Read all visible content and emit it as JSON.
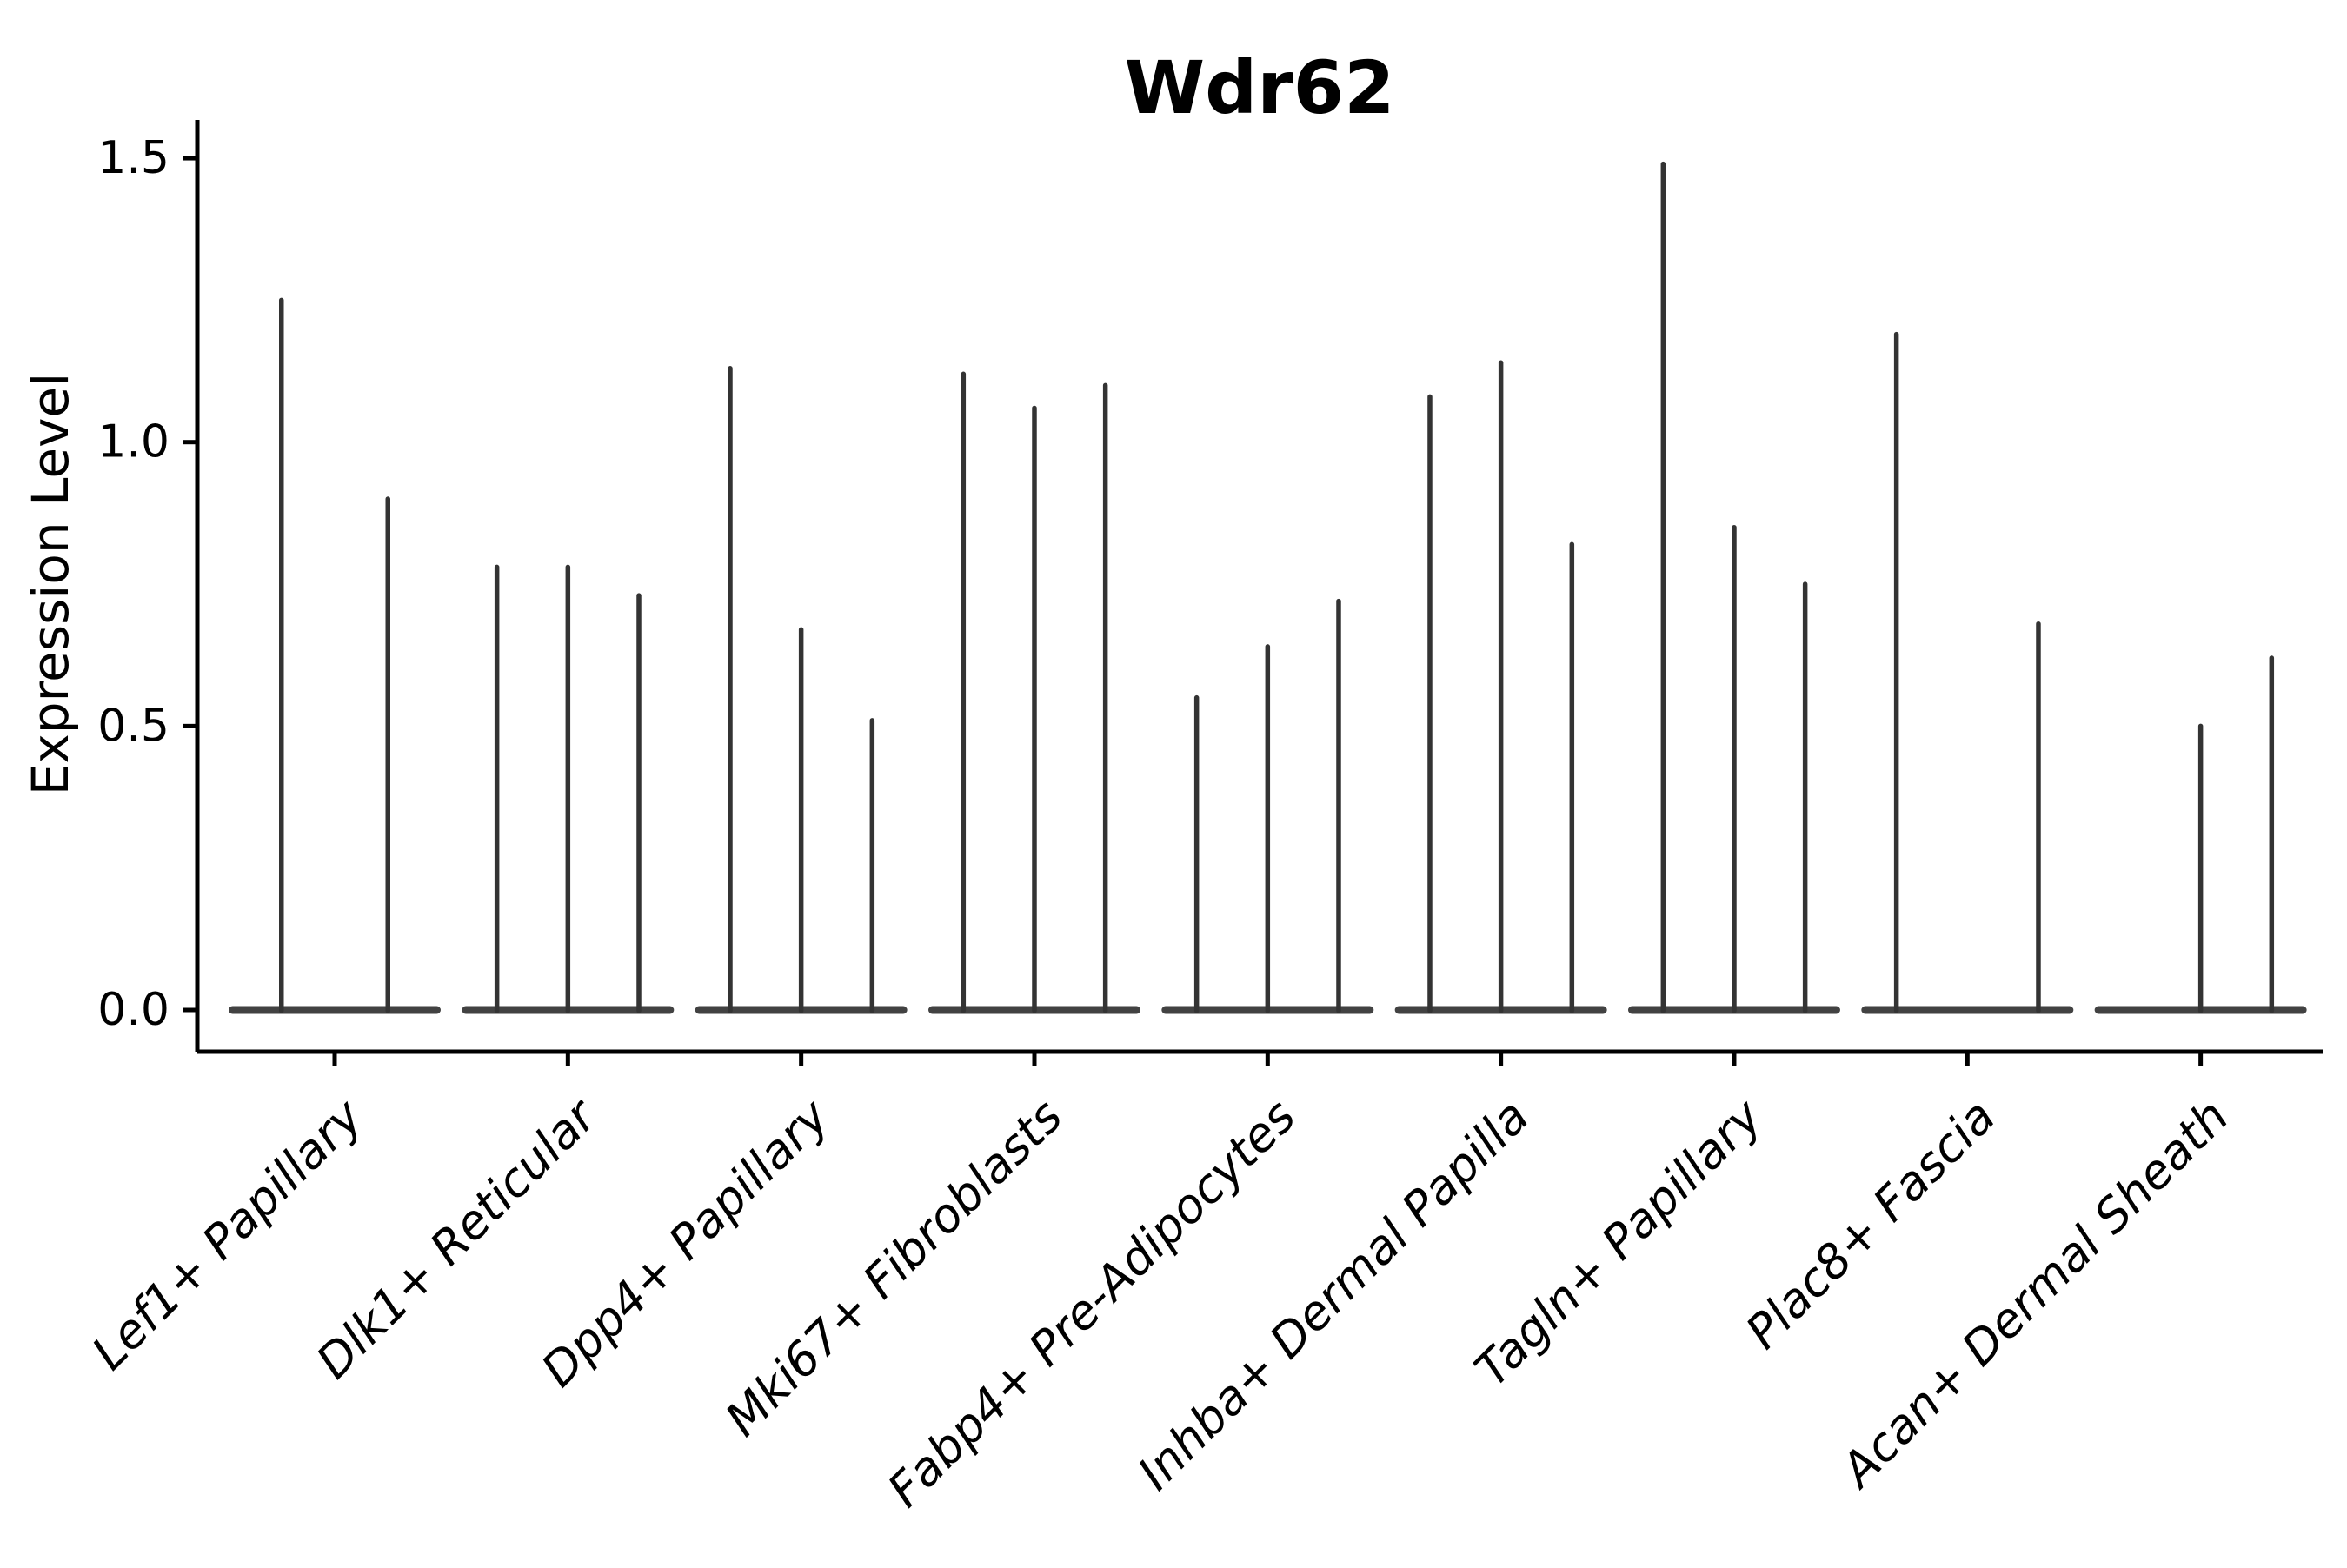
{
  "figure": {
    "title": "Wdr62",
    "ylabel": "Expression Level"
  },
  "chart_data": {
    "type": "violin",
    "title": "Wdr62",
    "xlabel": "",
    "ylabel": "Expression Level",
    "ylim": [
      -0.07,
      1.56
    ],
    "yticks": [
      {
        "value": 0.0,
        "label": "0.0"
      },
      {
        "value": 0.5,
        "label": "0.5"
      },
      {
        "value": 1.0,
        "label": "1.0"
      },
      {
        "value": 1.5,
        "label": "1.5"
      }
    ],
    "grid": false,
    "legend": "none",
    "violin_style": "flat baseline at zero with narrow vertical spike to max expression",
    "colors": {
      "violin": "#333333",
      "axis": "#000000",
      "background": "#ffffff"
    },
    "categories": [
      {
        "label": "Lef1+ Papillary",
        "violin_max_expression": [
          1.25,
          0.9
        ]
      },
      {
        "label": "Dlk1+ Reticular",
        "violin_max_expression": [
          0.78,
          0.78,
          0.73
        ]
      },
      {
        "label": "Dpp4+ Papillary",
        "violin_max_expression": [
          1.13,
          0.67,
          0.51
        ]
      },
      {
        "label": "Mki67+ Fibroblasts",
        "violin_max_expression": [
          1.12,
          1.06,
          1.1
        ]
      },
      {
        "label": "Fabp4+ Pre-Adipocytes",
        "violin_max_expression": [
          0.55,
          0.64,
          0.72
        ]
      },
      {
        "label": "Inhba+ Dermal Papilla",
        "violin_max_expression": [
          1.08,
          1.14,
          0.82
        ]
      },
      {
        "label": "Tagln+ Papillary",
        "violin_max_expression": [
          1.49,
          0.85,
          0.75
        ]
      },
      {
        "label": "Plac8+ Fascia",
        "violin_max_expression": [
          1.19,
          null,
          0.68
        ]
      },
      {
        "label": "Acan+ Dermal Sheath",
        "violin_max_expression": [
          null,
          0.5,
          0.62
        ]
      }
    ]
  }
}
